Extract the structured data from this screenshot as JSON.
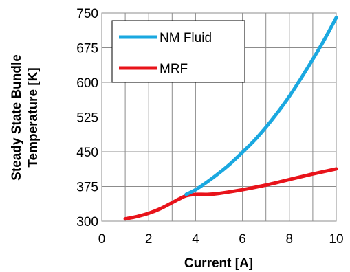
{
  "chart_data": {
    "type": "line",
    "xlabel": "Current [A]",
    "ylabel": "Steady State Bundle Temperature [K]",
    "ylabel_lines": [
      "Steady State Bundle",
      "Temperature [K]"
    ],
    "xlim": [
      0,
      10
    ],
    "ylim": [
      300,
      750
    ],
    "xticks": [
      0,
      2,
      4,
      6,
      8,
      10
    ],
    "yticks": [
      300,
      375,
      450,
      525,
      600,
      675,
      750
    ],
    "grid": true,
    "legend": "top-left",
    "series": [
      {
        "name": "NM Fluid",
        "color": "#1aa8e0",
        "x": [
          3.6,
          4,
          4.5,
          5,
          5.5,
          6,
          6.5,
          7,
          7.5,
          8,
          8.5,
          9,
          9.5,
          10
        ],
        "y": [
          358,
          368,
          385,
          404,
          425,
          449,
          474,
          503,
          535,
          570,
          609,
          650,
          693,
          740
        ]
      },
      {
        "name": "MRF",
        "color": "#e8131a",
        "x": [
          1,
          1.5,
          2,
          2.5,
          3,
          3.3,
          3.6,
          4,
          4.5,
          5,
          6,
          7,
          8,
          9,
          10
        ],
        "y": [
          305,
          310,
          317,
          327,
          340,
          348,
          355,
          358,
          358,
          360,
          368,
          378,
          390,
          402,
          413
        ]
      }
    ]
  }
}
